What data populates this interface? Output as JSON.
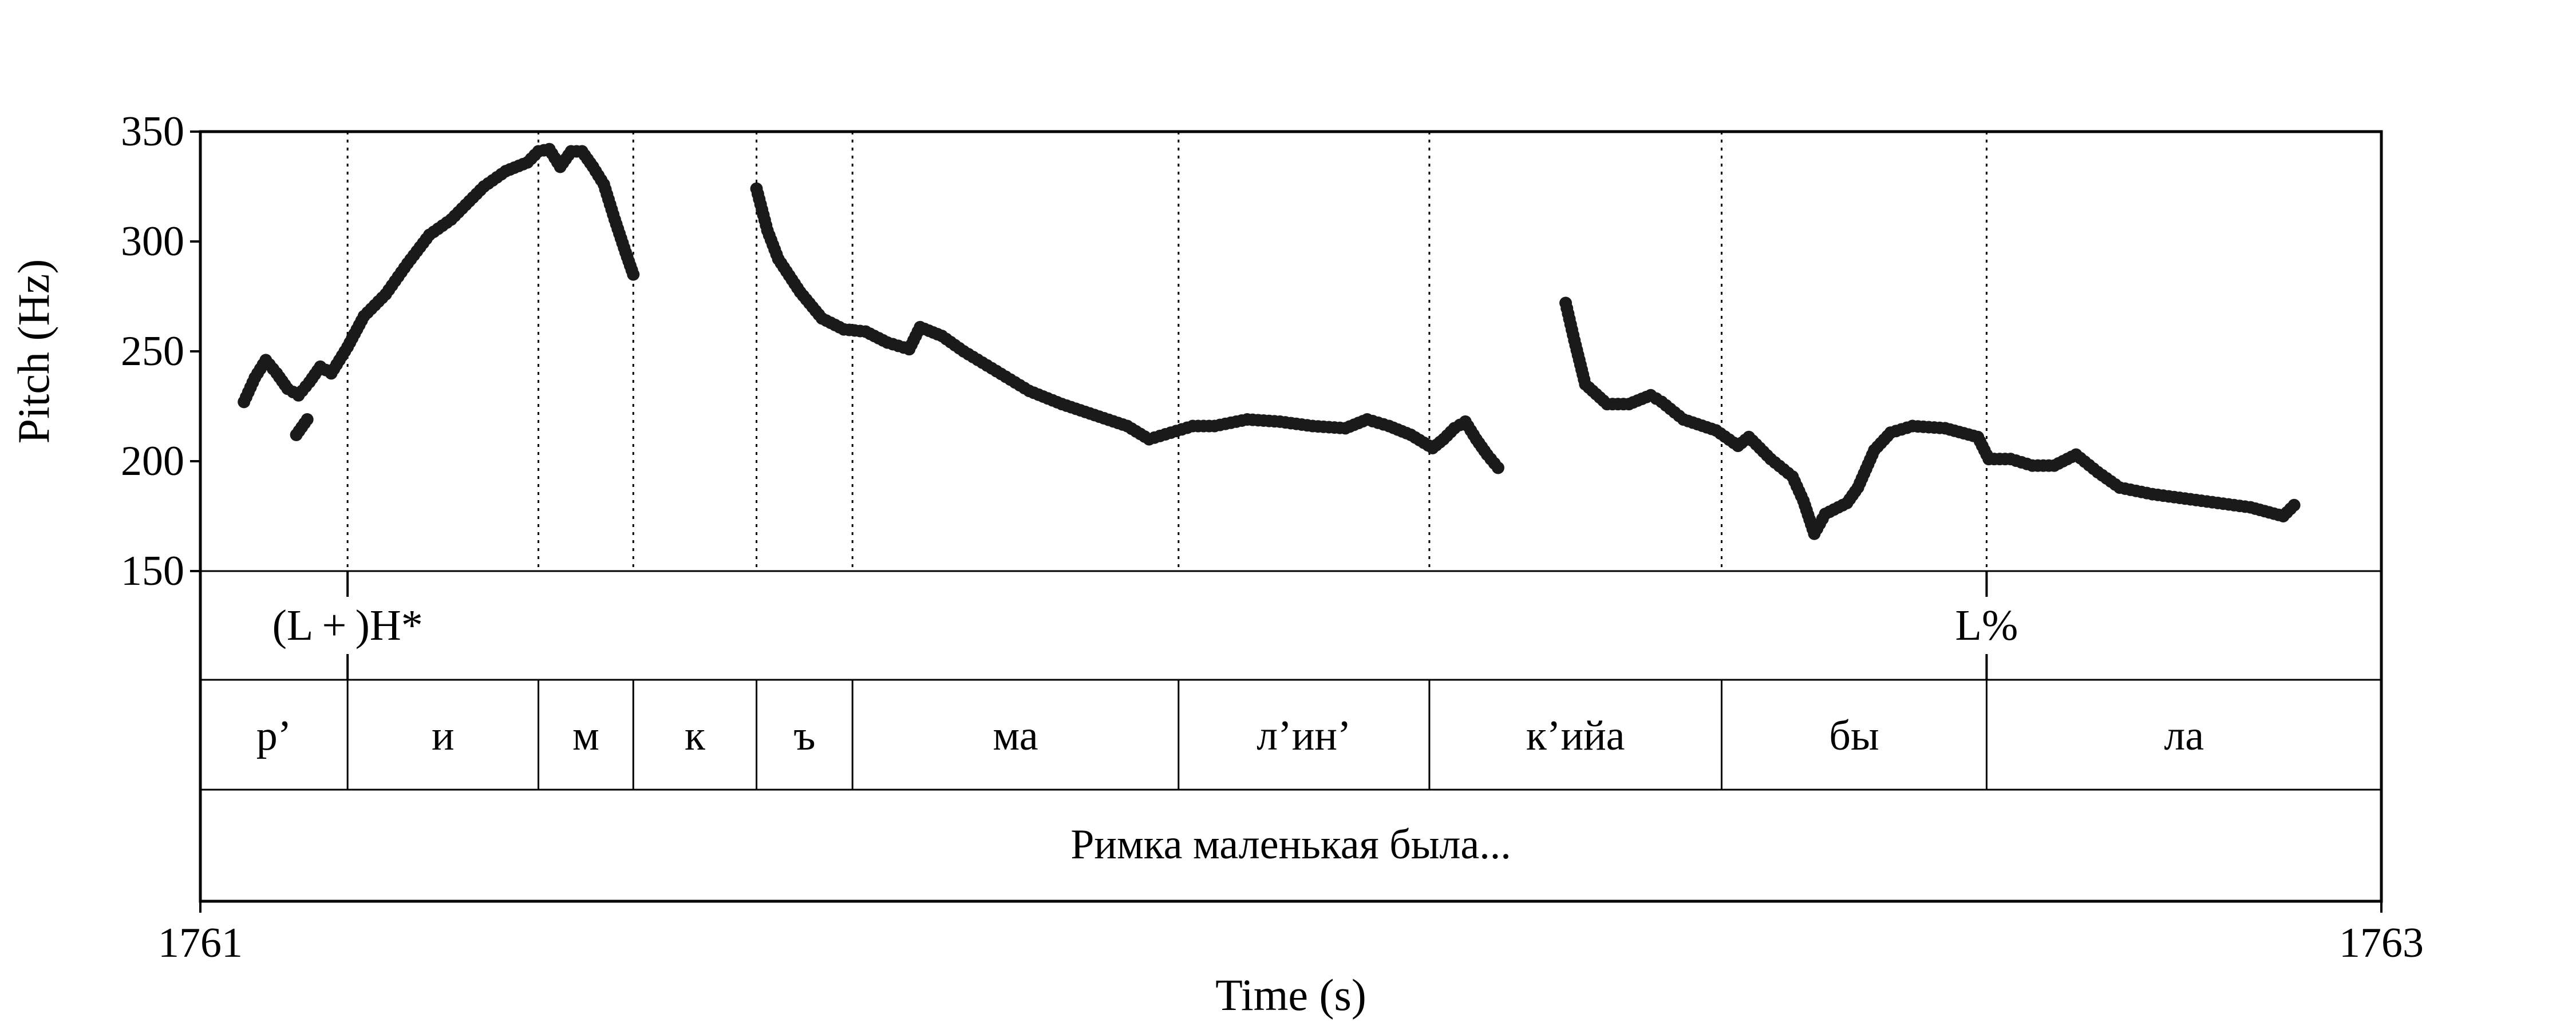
{
  "chart_data": {
    "type": "scatter",
    "xlabel": "Time (s)",
    "ylabel": "Pitch (Hz)",
    "xlim": [
      1761,
      1763
    ],
    "ylim": [
      150,
      350
    ],
    "x_tick_labels": [
      "1761",
      "1763"
    ],
    "y_ticks": [
      150,
      200,
      250,
      300,
      350
    ],
    "y_tick_labels": [
      "150",
      "200",
      "250",
      "300",
      "350"
    ],
    "grid": false,
    "point_color": "#1a1a1a",
    "boundaries": [
      1761.135,
      1761.31,
      1761.397,
      1761.51,
      1761.598,
      1761.897,
      1762.127,
      1762.395,
      1762.638
    ],
    "tones": [
      {
        "label": "(L + )H*",
        "t": 1761.135
      },
      {
        "label": "L%",
        "t": 1762.638
      }
    ],
    "segments": [
      {
        "label": "р’",
        "start": 1761.0,
        "end": 1761.135
      },
      {
        "label": "и",
        "start": 1761.135,
        "end": 1761.31
      },
      {
        "label": "м",
        "start": 1761.31,
        "end": 1761.397
      },
      {
        "label": "к",
        "start": 1761.397,
        "end": 1761.51
      },
      {
        "label": "ъ",
        "start": 1761.51,
        "end": 1761.598
      },
      {
        "label": "ма",
        "start": 1761.598,
        "end": 1761.897
      },
      {
        "label": "л’ин’",
        "start": 1761.897,
        "end": 1762.127
      },
      {
        "label": "к’ийа",
        "start": 1762.127,
        "end": 1762.395
      },
      {
        "label": "бы",
        "start": 1762.395,
        "end": 1762.638
      },
      {
        "label": "ла",
        "start": 1762.638,
        "end": 1763.0
      }
    ],
    "sentence": "Римка маленькая была...",
    "pitch_contours": [
      [
        [
          1761.04,
          227
        ],
        [
          1761.05,
          238
        ],
        [
          1761.06,
          246
        ],
        [
          1761.07,
          240
        ],
        [
          1761.08,
          233
        ],
        [
          1761.09,
          230
        ],
        [
          1761.1,
          236
        ],
        [
          1761.11,
          243
        ],
        [
          1761.12,
          240
        ],
        [
          1761.135,
          252
        ],
        [
          1761.15,
          266
        ],
        [
          1761.17,
          276
        ],
        [
          1761.19,
          290
        ],
        [
          1761.21,
          303
        ],
        [
          1761.23,
          310
        ],
        [
          1761.26,
          325
        ],
        [
          1761.28,
          332
        ],
        [
          1761.3,
          336
        ],
        [
          1761.31,
          341
        ],
        [
          1761.32,
          342
        ],
        [
          1761.33,
          334
        ],
        [
          1761.34,
          341
        ],
        [
          1761.35,
          341
        ],
        [
          1761.36,
          334
        ],
        [
          1761.37,
          326
        ],
        [
          1761.38,
          310
        ],
        [
          1761.39,
          295
        ],
        [
          1761.397,
          285
        ]
      ],
      [
        [
          1761.088,
          212
        ],
        [
          1761.098,
          219
        ]
      ],
      [
        [
          1761.51,
          324
        ],
        [
          1761.52,
          305
        ],
        [
          1761.53,
          292
        ],
        [
          1761.55,
          277
        ],
        [
          1761.57,
          265
        ],
        [
          1761.59,
          260
        ],
        [
          1761.61,
          259
        ],
        [
          1761.63,
          254
        ],
        [
          1761.65,
          251
        ],
        [
          1761.66,
          261
        ],
        [
          1761.68,
          257
        ],
        [
          1761.7,
          250
        ],
        [
          1761.73,
          241
        ],
        [
          1761.76,
          232
        ],
        [
          1761.79,
          226
        ],
        [
          1761.82,
          221
        ],
        [
          1761.85,
          216
        ],
        [
          1761.87,
          210
        ],
        [
          1761.89,
          213
        ],
        [
          1761.91,
          216
        ],
        [
          1761.93,
          216
        ],
        [
          1761.96,
          219
        ],
        [
          1761.99,
          218
        ],
        [
          1762.02,
          216
        ],
        [
          1762.05,
          215
        ],
        [
          1762.07,
          219
        ],
        [
          1762.09,
          216
        ],
        [
          1762.11,
          212
        ],
        [
          1762.13,
          206
        ],
        [
          1762.14,
          210
        ],
        [
          1762.15,
          215
        ],
        [
          1762.16,
          218
        ],
        [
          1762.17,
          210
        ],
        [
          1762.18,
          203
        ],
        [
          1762.19,
          197
        ]
      ],
      [
        [
          1762.252,
          272
        ],
        [
          1762.26,
          255
        ],
        [
          1762.27,
          235
        ],
        [
          1762.29,
          226
        ],
        [
          1762.31,
          226
        ],
        [
          1762.33,
          230
        ],
        [
          1762.34,
          227
        ],
        [
          1762.36,
          219
        ],
        [
          1762.39,
          214
        ],
        [
          1762.41,
          207
        ],
        [
          1762.42,
          211
        ],
        [
          1762.44,
          201
        ],
        [
          1762.46,
          193
        ],
        [
          1762.47,
          182
        ],
        [
          1762.48,
          167
        ],
        [
          1762.49,
          176
        ],
        [
          1762.51,
          181
        ],
        [
          1762.52,
          188
        ],
        [
          1762.535,
          205
        ],
        [
          1762.55,
          213
        ],
        [
          1762.57,
          216
        ],
        [
          1762.6,
          215
        ],
        [
          1762.63,
          211
        ],
        [
          1762.64,
          201
        ],
        [
          1762.66,
          201
        ],
        [
          1762.68,
          198
        ],
        [
          1762.7,
          198
        ],
        [
          1762.72,
          203
        ],
        [
          1762.74,
          195
        ],
        [
          1762.76,
          188
        ],
        [
          1762.79,
          185
        ],
        [
          1762.82,
          183
        ],
        [
          1762.85,
          181
        ],
        [
          1762.88,
          179
        ],
        [
          1762.91,
          175
        ],
        [
          1762.92,
          180
        ]
      ]
    ]
  }
}
